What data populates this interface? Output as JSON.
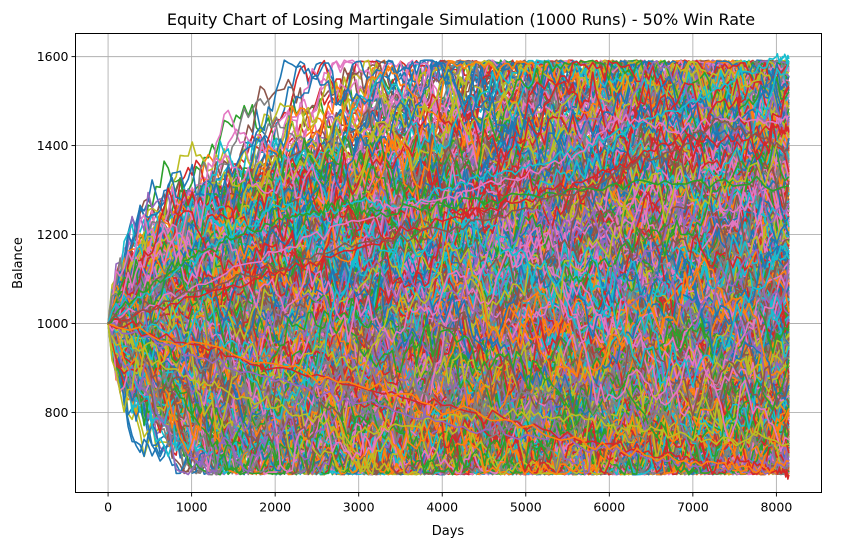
{
  "chart_data": {
    "type": "line",
    "title": "Equity Chart of Losing Martingale Simulation (1000 Runs) - 50% Win Rate",
    "xlabel": "Days",
    "ylabel": "Balance",
    "xlim": [
      -390,
      8540
    ],
    "ylim": [
      620,
      1652
    ],
    "xticks": [
      0,
      1000,
      2000,
      3000,
      4000,
      5000,
      6000,
      7000,
      8000
    ],
    "yticks": [
      800,
      1000,
      1200,
      1400,
      1600
    ],
    "grid": true,
    "legend": "none",
    "series_count": 1000,
    "days": 8150,
    "start_balance": 1000,
    "palette": [
      "#1f77b4",
      "#ff7f0e",
      "#2ca02c",
      "#d62728",
      "#9467bd",
      "#8c564b",
      "#e377c2",
      "#7f7f7f",
      "#bcbd22",
      "#17becf"
    ],
    "highlighted_runs": [
      {
        "color": "#17becf",
        "points": [
          [
            0,
            1000
          ],
          [
            600,
            1090
          ],
          [
            1200,
            1170
          ],
          [
            1700,
            1220
          ],
          [
            2000,
            1265
          ],
          [
            2500,
            1240
          ],
          [
            3000,
            1275
          ],
          [
            3500,
            1260
          ],
          [
            4000,
            1300
          ],
          [
            4500,
            1330
          ],
          [
            5000,
            1350
          ],
          [
            5500,
            1385
          ],
          [
            6000,
            1420
          ],
          [
            6500,
            1460
          ],
          [
            7000,
            1500
          ],
          [
            7500,
            1545
          ],
          [
            8000,
            1600
          ],
          [
            8150,
            1595
          ]
        ]
      },
      {
        "color": "#e377c2",
        "points": [
          [
            0,
            1000
          ],
          [
            1000,
            1080
          ],
          [
            2000,
            1160
          ],
          [
            3000,
            1230
          ],
          [
            4000,
            1280
          ],
          [
            5000,
            1330
          ],
          [
            5600,
            1380
          ],
          [
            6200,
            1470
          ],
          [
            6800,
            1430
          ],
          [
            7400,
            1460
          ],
          [
            8000,
            1450
          ],
          [
            8150,
            1465
          ]
        ]
      },
      {
        "color": "#d62728",
        "points": [
          [
            0,
            1000
          ],
          [
            1000,
            1060
          ],
          [
            2000,
            1110
          ],
          [
            3000,
            1170
          ],
          [
            4000,
            1230
          ],
          [
            5000,
            1280
          ],
          [
            6000,
            1340
          ],
          [
            6500,
            1390
          ],
          [
            7000,
            1420
          ],
          [
            7500,
            1410
          ],
          [
            8000,
            1440
          ],
          [
            8150,
            1430
          ]
        ]
      },
      {
        "color": "#bcbd22",
        "points": [
          [
            0,
            1000
          ],
          [
            400,
            940
          ],
          [
            900,
            880
          ],
          [
            1400,
            850
          ],
          [
            2000,
            810
          ],
          [
            2500,
            790
          ],
          [
            2800,
            740
          ],
          [
            3100,
            760
          ],
          [
            3600,
            770
          ],
          [
            4200,
            790
          ],
          [
            4800,
            800
          ],
          [
            5400,
            790
          ],
          [
            6000,
            770
          ],
          [
            6600,
            760
          ],
          [
            7200,
            740
          ],
          [
            8150,
            730
          ]
        ]
      },
      {
        "color": "#9467bd",
        "points": [
          [
            0,
            1000
          ],
          [
            1000,
            930
          ],
          [
            2000,
            870
          ],
          [
            3000,
            820
          ],
          [
            4000,
            780
          ],
          [
            5000,
            750
          ],
          [
            6000,
            720
          ],
          [
            6500,
            700
          ],
          [
            7000,
            680
          ],
          [
            7500,
            690
          ],
          [
            8000,
            680
          ],
          [
            8150,
            685
          ]
        ]
      },
      {
        "color": "#d62728",
        "points": [
          [
            0,
            1000
          ],
          [
            1200,
            940
          ],
          [
            2400,
            880
          ],
          [
            3600,
            830
          ],
          [
            4800,
            780
          ],
          [
            6000,
            730
          ],
          [
            6800,
            700
          ],
          [
            7200,
            680
          ],
          [
            7600,
            690
          ],
          [
            8000,
            670
          ],
          [
            8150,
            660
          ]
        ]
      },
      {
        "color": "#ff7f0e",
        "points": [
          [
            0,
            1000
          ],
          [
            1500,
            930
          ],
          [
            3000,
            860
          ],
          [
            4500,
            790
          ],
          [
            5500,
            740
          ],
          [
            6500,
            700
          ],
          [
            7300,
            685
          ],
          [
            7800,
            670
          ],
          [
            8150,
            690
          ]
        ]
      },
      {
        "color": "#2ca02c",
        "points": [
          [
            0,
            1000
          ],
          [
            500,
            1080
          ],
          [
            1000,
            1150
          ],
          [
            1500,
            1190
          ],
          [
            2000,
            1230
          ],
          [
            2500,
            1250
          ],
          [
            2800,
            1270
          ],
          [
            3200,
            1240
          ],
          [
            4000,
            1270
          ],
          [
            5000,
            1290
          ],
          [
            6000,
            1310
          ],
          [
            7000,
            1320
          ],
          [
            8150,
            1310
          ]
        ]
      },
      {
        "color": "#8c564b",
        "points": [
          [
            0,
            1000
          ],
          [
            1000,
            1070
          ],
          [
            2000,
            1120
          ],
          [
            3000,
            1180
          ],
          [
            4000,
            1210
          ],
          [
            5000,
            1260
          ],
          [
            6000,
            1330
          ],
          [
            6800,
            1390
          ],
          [
            7300,
            1460
          ],
          [
            7800,
            1420
          ],
          [
            8150,
            1390
          ]
        ]
      }
    ]
  }
}
